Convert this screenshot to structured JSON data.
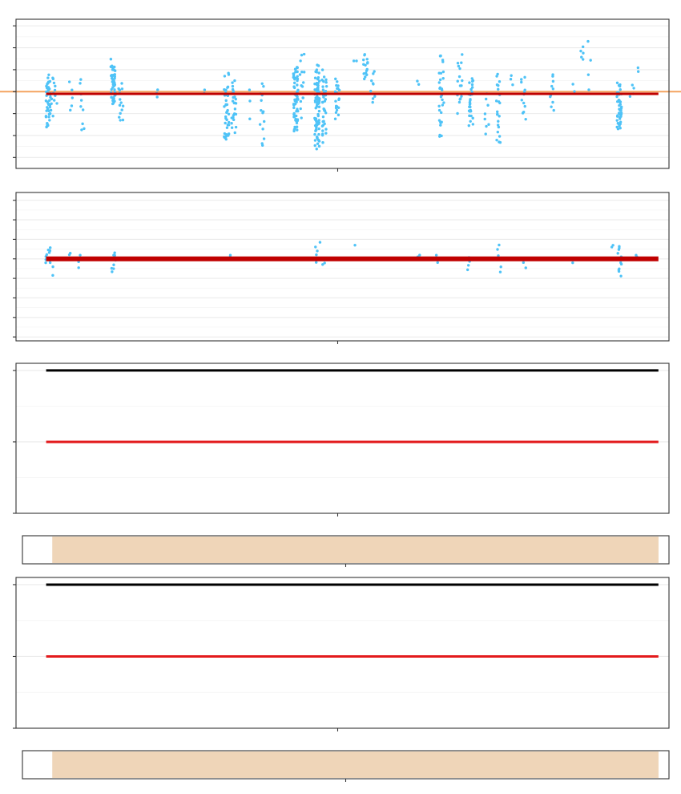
{
  "colors": {
    "points": "#4fc3f7",
    "median_line": "#c00000",
    "reference_line": "#f4a460",
    "upper_line": "#000000",
    "lower_line": "#e31a1c",
    "range_fill": "#efd5b8",
    "grid": "#ebebeb",
    "frame": "#333333"
  },
  "chart_data": [
    {
      "type": "scatter",
      "panel": "top",
      "x_range": [
        0,
        1000
      ],
      "ylim": [
        -3.5,
        3.3
      ],
      "y_ticks": [
        -3,
        -2,
        -1,
        0,
        1,
        2,
        3
      ],
      "grid": true,
      "title": "",
      "xlabel": "",
      "ylabel": "",
      "reference_y": 0,
      "median_y": -0.1,
      "median_x_range": [
        45,
        985
      ],
      "clusters": [
        {
          "x": 48,
          "n": 40,
          "y_min": -1.9,
          "y_max": 0.9
        },
        {
          "x": 52,
          "n": 12,
          "y_min": -1.2,
          "y_max": 0.8
        },
        {
          "x": 58,
          "n": 8,
          "y_min": -0.6,
          "y_max": 0.6
        },
        {
          "x": 82,
          "n": 5,
          "y_min": -1.1,
          "y_max": 0.7
        },
        {
          "x": 100,
          "n": 10,
          "y_min": -2.0,
          "y_max": 0.7
        },
        {
          "x": 148,
          "n": 45,
          "y_min": -0.8,
          "y_max": 1.5
        },
        {
          "x": 160,
          "n": 14,
          "y_min": -1.6,
          "y_max": 0.5
        },
        {
          "x": 218,
          "n": 3,
          "y_min": -0.3,
          "y_max": 0.1
        },
        {
          "x": 290,
          "n": 2,
          "y_min": -0.1,
          "y_max": 0.1
        },
        {
          "x": 322,
          "n": 38,
          "y_min": -2.5,
          "y_max": 0.9
        },
        {
          "x": 333,
          "n": 24,
          "y_min": -1.9,
          "y_max": 0.6
        },
        {
          "x": 355,
          "n": 3,
          "y_min": -1.3,
          "y_max": 0.3
        },
        {
          "x": 376,
          "n": 14,
          "y_min": -2.8,
          "y_max": 0.7
        },
        {
          "x": 428,
          "n": 60,
          "y_min": -1.9,
          "y_max": 1.3
        },
        {
          "x": 438,
          "n": 14,
          "y_min": -1.2,
          "y_max": 1.9
        },
        {
          "x": 461,
          "n": 80,
          "y_min": -2.7,
          "y_max": 1.3
        },
        {
          "x": 472,
          "n": 35,
          "y_min": -2.4,
          "y_max": 1.1
        },
        {
          "x": 492,
          "n": 20,
          "y_min": -1.3,
          "y_max": 0.7
        },
        {
          "x": 518,
          "n": 2,
          "y_min": 1.4,
          "y_max": 1.4
        },
        {
          "x": 535,
          "n": 15,
          "y_min": 0.5,
          "y_max": 1.8
        },
        {
          "x": 547,
          "n": 9,
          "y_min": -0.6,
          "y_max": 1.1
        },
        {
          "x": 618,
          "n": 2,
          "y_min": 0.3,
          "y_max": 0.5
        },
        {
          "x": 652,
          "n": 30,
          "y_min": -2.4,
          "y_max": 1.9
        },
        {
          "x": 680,
          "n": 16,
          "y_min": -1.0,
          "y_max": 1.8
        },
        {
          "x": 697,
          "n": 28,
          "y_min": -1.7,
          "y_max": 0.8
        },
        {
          "x": 722,
          "n": 8,
          "y_min": -2.2,
          "y_max": 0.2
        },
        {
          "x": 740,
          "n": 22,
          "y_min": -2.6,
          "y_max": 0.9
        },
        {
          "x": 760,
          "n": 3,
          "y_min": 0.3,
          "y_max": 0.8
        },
        {
          "x": 778,
          "n": 12,
          "y_min": -1.3,
          "y_max": 0.9
        },
        {
          "x": 822,
          "n": 10,
          "y_min": -1.0,
          "y_max": 1.0
        },
        {
          "x": 855,
          "n": 2,
          "y_min": 0.0,
          "y_max": 0.4
        },
        {
          "x": 868,
          "n": 5,
          "y_min": 1.4,
          "y_max": 2.1
        },
        {
          "x": 878,
          "n": 4,
          "y_min": -0.2,
          "y_max": 2.6
        },
        {
          "x": 925,
          "n": 45,
          "y_min": -1.9,
          "y_max": 0.5
        },
        {
          "x": 945,
          "n": 4,
          "y_min": -0.3,
          "y_max": 0.4
        },
        {
          "x": 952,
          "n": 2,
          "y_min": 0.9,
          "y_max": 1.1
        }
      ]
    },
    {
      "type": "scatter",
      "panel": "middle",
      "x_range": [
        0,
        1000
      ],
      "ylim": [
        -4.2,
        3.4
      ],
      "y_ticks": [
        -4,
        -3,
        -2,
        -1,
        0,
        1,
        2,
        3
      ],
      "grid": true,
      "title": "",
      "xlabel": "",
      "ylabel": "",
      "median_y": 0,
      "median_x_range": [
        45,
        985
      ],
      "clusters": [
        {
          "x": 48,
          "n": 10,
          "y_min": -0.3,
          "y_max": 0.6
        },
        {
          "x": 54,
          "n": 3,
          "y_min": -0.9,
          "y_max": 0.1
        },
        {
          "x": 80,
          "n": 2,
          "y_min": 0.2,
          "y_max": 0.3
        },
        {
          "x": 95,
          "n": 3,
          "y_min": -0.5,
          "y_max": 0.2
        },
        {
          "x": 148,
          "n": 9,
          "y_min": -0.8,
          "y_max": 0.5
        },
        {
          "x": 325,
          "n": 2,
          "y_min": 0.1,
          "y_max": 0.2
        },
        {
          "x": 462,
          "n": 6,
          "y_min": -0.3,
          "y_max": 0.9
        },
        {
          "x": 470,
          "n": 2,
          "y_min": -0.3,
          "y_max": -0.2
        },
        {
          "x": 520,
          "n": 1,
          "y_min": 0.7,
          "y_max": 0.7
        },
        {
          "x": 615,
          "n": 2,
          "y_min": 0.1,
          "y_max": 0.2
        },
        {
          "x": 645,
          "n": 3,
          "y_min": -0.2,
          "y_max": 0.2
        },
        {
          "x": 695,
          "n": 4,
          "y_min": -0.6,
          "y_max": 0.1
        },
        {
          "x": 740,
          "n": 5,
          "y_min": -0.8,
          "y_max": 0.9
        },
        {
          "x": 780,
          "n": 3,
          "y_min": -0.5,
          "y_max": 0.1
        },
        {
          "x": 855,
          "n": 1,
          "y_min": -0.2,
          "y_max": -0.2
        },
        {
          "x": 915,
          "n": 2,
          "y_min": 0.6,
          "y_max": 0.7
        },
        {
          "x": 925,
          "n": 12,
          "y_min": -1.0,
          "y_max": 0.8
        },
        {
          "x": 952,
          "n": 2,
          "y_min": 0.1,
          "y_max": 0.2
        }
      ]
    },
    {
      "type": "line",
      "panel": "lines-1",
      "x_range": [
        0,
        1000
      ],
      "ylim": [
        -1.0,
        1.1
      ],
      "y_ticks": [
        -1,
        0,
        1
      ],
      "grid": true,
      "title": "",
      "xlabel": "",
      "ylabel": "",
      "series": [
        {
          "y": 1,
          "x_from": 45,
          "x_to": 985,
          "color_key": "upper_line"
        },
        {
          "y": 0,
          "x_from": 45,
          "x_to": 985,
          "color_key": "lower_line"
        }
      ]
    },
    {
      "type": "area",
      "panel": "range-1",
      "x_range": [
        0,
        1000
      ],
      "fill_x_range": [
        45,
        985
      ],
      "grid": false,
      "title": "",
      "xlabel": "",
      "ylabel": ""
    },
    {
      "type": "line",
      "panel": "lines-2",
      "x_range": [
        0,
        1000
      ],
      "ylim": [
        -1.0,
        1.1
      ],
      "y_ticks": [
        -1,
        0,
        1
      ],
      "grid": true,
      "title": "",
      "xlabel": "",
      "ylabel": "",
      "series": [
        {
          "y": 1,
          "x_from": 45,
          "x_to": 985,
          "color_key": "upper_line"
        },
        {
          "y": 0,
          "x_from": 45,
          "x_to": 985,
          "color_key": "lower_line"
        }
      ]
    },
    {
      "type": "area",
      "panel": "range-2",
      "x_range": [
        0,
        1000
      ],
      "fill_x_range": [
        45,
        985
      ],
      "grid": false,
      "title": "",
      "xlabel": "",
      "ylabel": ""
    }
  ]
}
